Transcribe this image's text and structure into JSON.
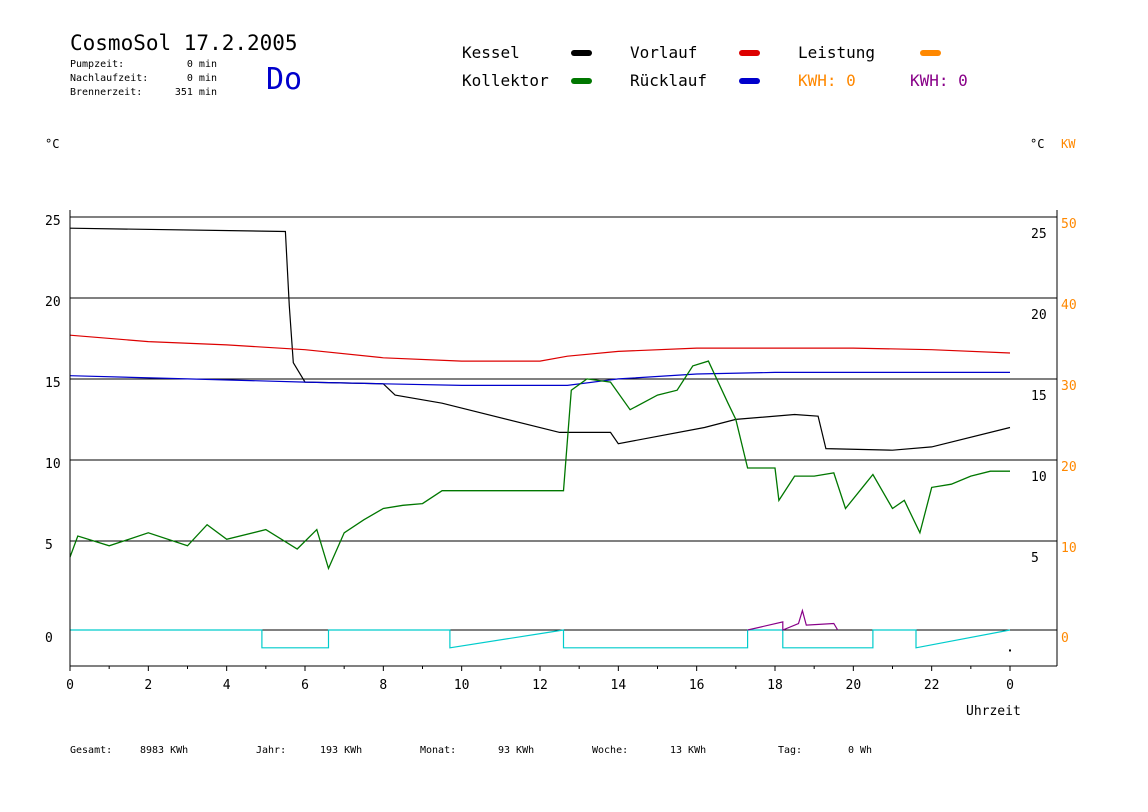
{
  "header": {
    "title": "CosmoSol 17.2.2005",
    "day": "Do",
    "stats": [
      {
        "label": "Pumpzeit:",
        "value": "0 min"
      },
      {
        "label": "Nachlaufzeit:",
        "value": "0 min"
      },
      {
        "label": "Brennerzeit:",
        "value": "351 min"
      }
    ]
  },
  "legend": {
    "items": [
      {
        "label": "Kessel",
        "color": "#000000"
      },
      {
        "label": "Vorlauf",
        "color": "#dd0000"
      },
      {
        "label": "Leistung",
        "color": "#ff8800"
      },
      {
        "label": "Kollektor",
        "color": "#007700"
      },
      {
        "label": "Rücklauf",
        "color": "#0000cc"
      }
    ],
    "kwh": [
      {
        "label": "KWH: 0",
        "color": "#ff8800"
      },
      {
        "label": "KWH: 0",
        "color": "#880088"
      }
    ]
  },
  "axes": {
    "left_unit": "°C",
    "right_unit": "°C",
    "right_unit2": "KW",
    "xlabel": "Uhrzeit"
  },
  "footer": [
    {
      "label": "Gesamt:",
      "value": "8983 KWh"
    },
    {
      "label": "Jahr:",
      "value": "193 KWh"
    },
    {
      "label": "Monat:",
      "value": "93 KWh"
    },
    {
      "label": "Woche:",
      "value": "13 KWh"
    },
    {
      "label": "Tag:",
      "value": "0 Wh"
    }
  ],
  "chart_data": {
    "type": "line",
    "x_ticks": [
      "0",
      "2",
      "4",
      "6",
      "8",
      "10",
      "12",
      "14",
      "16",
      "18",
      "20",
      "22",
      "0"
    ],
    "y_ticks_left": [
      "0",
      "5",
      "10",
      "15",
      "20",
      "25"
    ],
    "y_ticks_right_temp": [
      "5",
      "10",
      "15",
      "20",
      "25"
    ],
    "y_ticks_right_kw": [
      "0",
      "10",
      "20",
      "30",
      "40",
      "50"
    ],
    "xlim": [
      0,
      24.3
    ],
    "ylim": [
      -2.2,
      25.5
    ],
    "grid_y": [
      0,
      5,
      10,
      15,
      20,
      25
    ],
    "colors": {
      "kessel": "#000000",
      "vorlauf": "#dd0000",
      "ruecklauf": "#0000cc",
      "kollektor": "#007700",
      "leistung": "#00cccc",
      "leistung2": "#880088"
    },
    "series": [
      {
        "name": "Kessel",
        "key": "kessel",
        "x": [
          0,
          5.5,
          5.6,
          5.7,
          6,
          8,
          8.3,
          9.5,
          12.5,
          13.8,
          14,
          16.2,
          17,
          18.5,
          19.1,
          19.3,
          21,
          22,
          24
        ],
        "y": [
          24.8,
          24.6,
          20,
          16.5,
          15.3,
          15.2,
          14.5,
          14,
          12.2,
          12.2,
          11.5,
          12.5,
          13,
          13.3,
          13.2,
          11.2,
          11.1,
          11.3,
          12.5
        ]
      },
      {
        "name": "Vorlauf",
        "key": "vorlauf",
        "x": [
          0,
          2,
          4,
          6,
          8,
          10,
          12,
          12.7,
          14,
          16,
          18,
          20,
          22,
          24
        ],
        "y": [
          18.2,
          17.8,
          17.6,
          17.3,
          16.8,
          16.6,
          16.6,
          16.9,
          17.2,
          17.4,
          17.4,
          17.4,
          17.3,
          17.1
        ]
      },
      {
        "name": "Rücklauf",
        "key": "ruecklauf",
        "x": [
          0,
          3,
          6,
          8,
          10,
          12.7,
          14,
          16,
          18,
          20,
          22,
          24
        ],
        "y": [
          15.7,
          15.5,
          15.3,
          15.2,
          15.1,
          15.1,
          15.5,
          15.8,
          15.9,
          15.9,
          15.9,
          15.9
        ]
      },
      {
        "name": "Kollektor",
        "key": "kollektor",
        "x": [
          0,
          0.2,
          1,
          2,
          3,
          3.5,
          4,
          5,
          5.8,
          6.3,
          6.6,
          7,
          7.5,
          8,
          8.5,
          9,
          9.5,
          10,
          11,
          12,
          12.6,
          12.8,
          13.2,
          13.8,
          14.3,
          15,
          15.5,
          15.9,
          16.3,
          16.8,
          17,
          17.3,
          18,
          18.1,
          18.5,
          19,
          19.5,
          19.8,
          20.3,
          20.5,
          21,
          21.3,
          21.7,
          22,
          22.5,
          23,
          23.5,
          24
        ],
        "y": [
          4.5,
          5.8,
          5.2,
          6,
          5.2,
          6.5,
          5.6,
          6.2,
          5,
          6.2,
          3.8,
          6,
          6.8,
          7.5,
          7.7,
          7.8,
          8.6,
          8.6,
          8.6,
          8.6,
          8.6,
          14.8,
          15.5,
          15.3,
          13.6,
          14.5,
          14.8,
          16.3,
          16.6,
          14,
          13,
          10,
          10,
          8,
          9.5,
          9.5,
          9.7,
          7.5,
          9,
          9.6,
          7.5,
          8,
          6,
          8.8,
          9,
          9.5,
          9.8,
          9.8
        ]
      },
      {
        "name": "Leistung",
        "key": "leistung",
        "x": [
          0,
          4.9,
          4.9,
          6.6,
          6.6,
          9.7,
          9.7,
          12.6,
          12.6,
          17.3,
          17.3,
          18.2,
          18.2,
          20.5,
          20.5,
          21.6,
          21.6,
          24
        ],
        "y": [
          0,
          0,
          -1.1,
          -1.1,
          0,
          0,
          -1.1,
          0,
          -1.1,
          -1.1,
          0,
          0,
          -1.1,
          -1.1,
          0,
          0,
          -1.1,
          0
        ]
      },
      {
        "name": "Leistung 2",
        "key": "leistung2",
        "x": [
          17.3,
          18.2,
          18.2,
          18.6,
          18.7,
          18.8,
          19.5,
          19.6
        ],
        "y": [
          0,
          0.5,
          0,
          0.4,
          1.2,
          0.3,
          0.4,
          0
        ]
      }
    ]
  }
}
